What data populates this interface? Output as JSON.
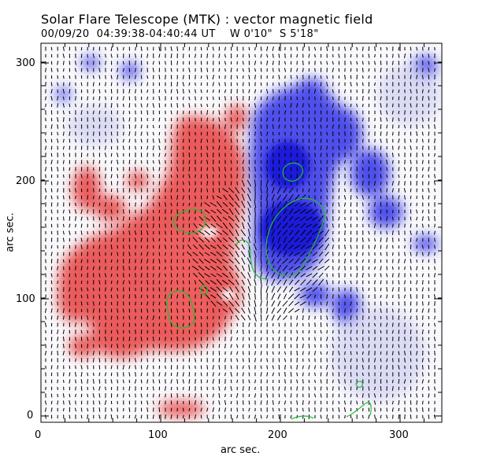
{
  "header": {
    "title": "Solar Flare Telescope (MTK) : vector magnetic field",
    "subtitle": "00/09/20  04:39:38-04:40:44 UT    W 0'10\"  S 5'18\""
  },
  "axes": {
    "xlabel": "arc sec.",
    "ylabel": "arc sec.",
    "xticks": [
      "0",
      "100",
      "200",
      "300"
    ],
    "yticks": [
      "0",
      "100",
      "200",
      "300"
    ],
    "xlim": [
      0,
      340
    ],
    "ylim": [
      -5,
      315
    ]
  },
  "colors": {
    "positive": "#e84040",
    "negative": "#2a2ae6",
    "contour": "#22bb33",
    "vectors": "#000000"
  }
}
